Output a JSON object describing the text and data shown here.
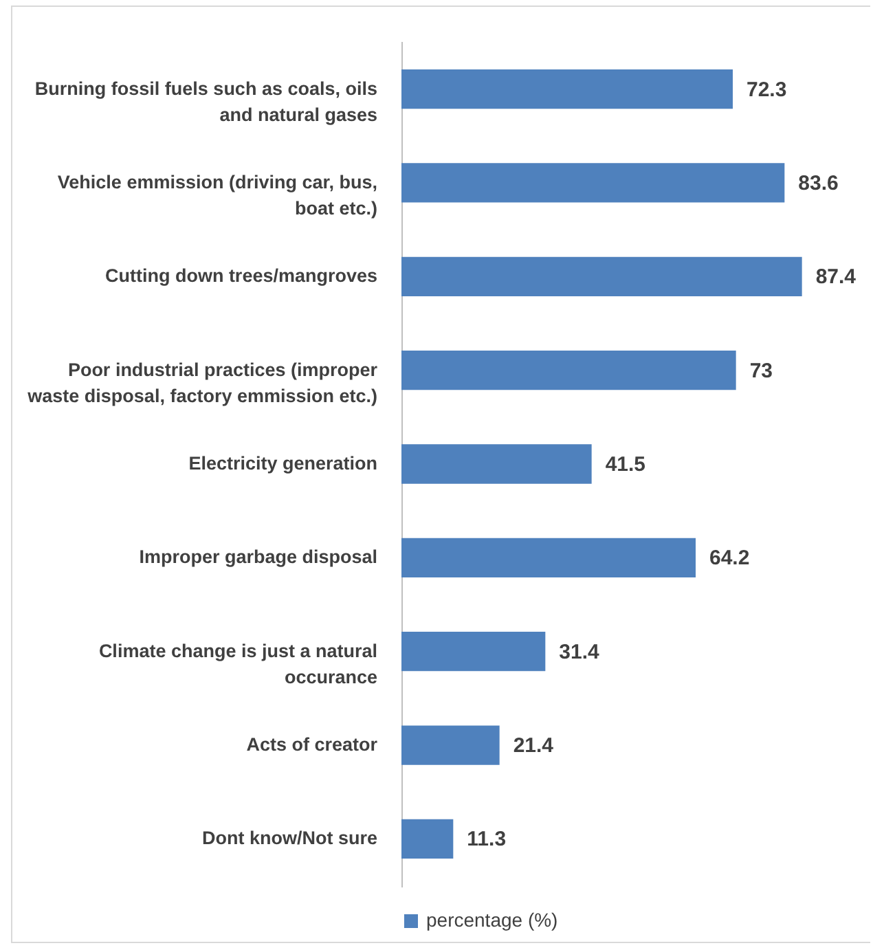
{
  "chart_data": {
    "type": "bar",
    "orientation": "horizontal",
    "categories": [
      "Burning fossil fuels such as coals, oils and natural gases",
      "Vehicle emmission (driving car, bus, boat etc.)",
      "Cutting down trees/mangroves",
      "Poor industrial practices (improper waste disposal, factory emmission etc.)",
      "Electricity generation",
      "Improper garbage disposal",
      "Climate change is just a natural occurance",
      "Acts of creator",
      "Dont know/Not sure"
    ],
    "series": [
      {
        "name": "percentage (%)",
        "color": "#4f81bd",
        "values": [
          72.3,
          83.6,
          87.4,
          73,
          41.5,
          64.2,
          31.4,
          21.4,
          11.3
        ]
      }
    ],
    "data_labels": true,
    "legend": "bottom",
    "grid": false
  }
}
